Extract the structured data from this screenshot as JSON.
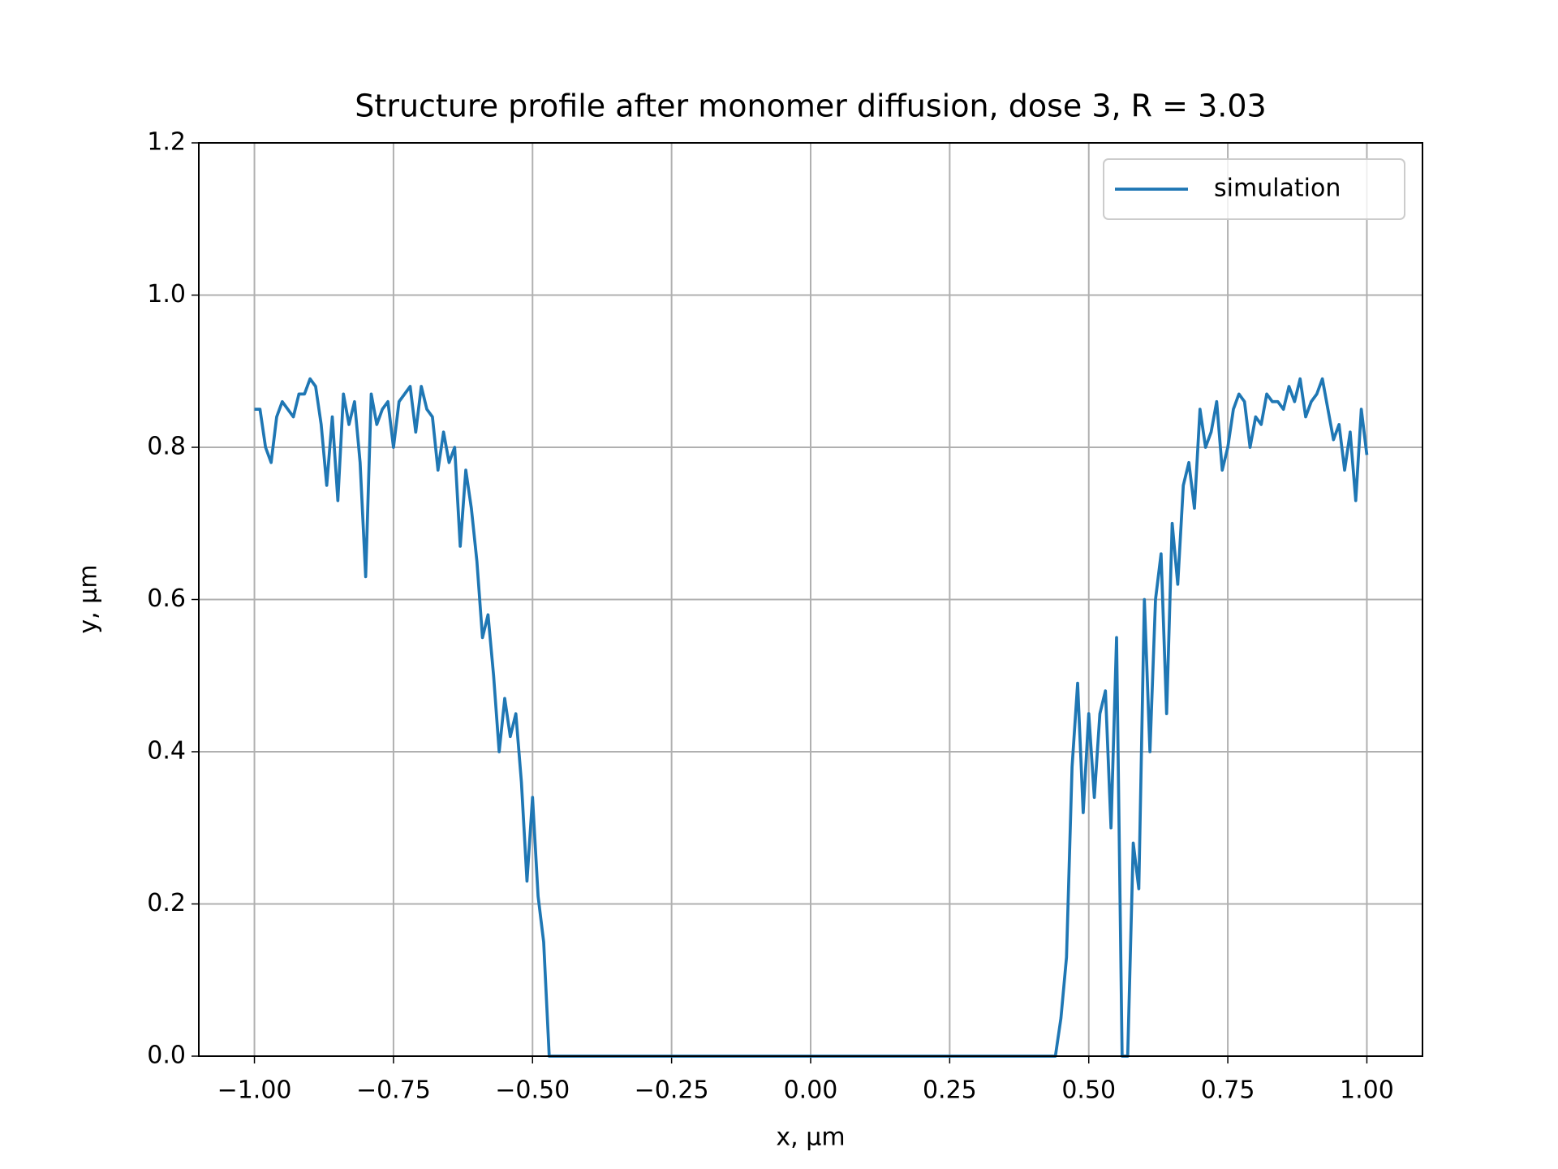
{
  "chart_data": {
    "type": "line",
    "title": "Structure profile after monomer diffusion, dose 3, R = 3.03",
    "x_label": "x, μm",
    "y_label": "y, μm",
    "x": [
      -1.0,
      -0.99,
      -0.98,
      -0.97,
      -0.96,
      -0.95,
      -0.94,
      -0.93,
      -0.92,
      -0.91,
      -0.9,
      -0.89,
      -0.88,
      -0.87,
      -0.86,
      -0.85,
      -0.84,
      -0.83,
      -0.82,
      -0.81,
      -0.8,
      -0.79,
      -0.78,
      -0.77,
      -0.76,
      -0.75,
      -0.74,
      -0.73,
      -0.72,
      -0.71,
      -0.7,
      -0.69,
      -0.68,
      -0.67,
      -0.66,
      -0.65,
      -0.64,
      -0.63,
      -0.62,
      -0.61,
      -0.6,
      -0.59,
      -0.58,
      -0.57,
      -0.56,
      -0.55,
      -0.54,
      -0.53,
      -0.52,
      -0.51,
      -0.5,
      -0.49,
      -0.48,
      -0.47,
      0.44,
      0.45,
      0.46,
      0.47,
      0.48,
      0.49,
      0.5,
      0.51,
      0.52,
      0.53,
      0.54,
      0.55,
      0.56,
      0.57,
      0.58,
      0.59,
      0.6,
      0.61,
      0.62,
      0.63,
      0.64,
      0.65,
      0.66,
      0.67,
      0.68,
      0.69,
      0.7,
      0.71,
      0.72,
      0.73,
      0.74,
      0.75,
      0.76,
      0.77,
      0.78,
      0.79,
      0.8,
      0.81,
      0.82,
      0.83,
      0.84,
      0.85,
      0.86,
      0.87,
      0.88,
      0.89,
      0.9,
      0.91,
      0.92,
      0.93,
      0.94,
      0.95,
      0.96,
      0.97,
      0.98,
      0.99,
      1.0
    ],
    "series": [
      {
        "name": "simulation",
        "color": "#1f77b4",
        "values": [
          0.85,
          0.85,
          0.8,
          0.78,
          0.84,
          0.86,
          0.85,
          0.84,
          0.87,
          0.87,
          0.89,
          0.88,
          0.83,
          0.75,
          0.84,
          0.73,
          0.87,
          0.83,
          0.86,
          0.78,
          0.63,
          0.87,
          0.83,
          0.85,
          0.86,
          0.8,
          0.86,
          0.87,
          0.88,
          0.82,
          0.88,
          0.85,
          0.84,
          0.77,
          0.82,
          0.78,
          0.8,
          0.67,
          0.77,
          0.72,
          0.65,
          0.55,
          0.58,
          0.5,
          0.4,
          0.47,
          0.42,
          0.45,
          0.36,
          0.23,
          0.34,
          0.21,
          0.15,
          0,
          0,
          0.05,
          0.13,
          0.38,
          0.49,
          0.32,
          0.45,
          0.34,
          0.45,
          0.48,
          0.3,
          0.55,
          0,
          0,
          0.28,
          0.22,
          0.6,
          0.4,
          0.6,
          0.66,
          0.45,
          0.7,
          0.62,
          0.75,
          0.78,
          0.72,
          0.85,
          0.8,
          0.82,
          0.86,
          0.77,
          0.8,
          0.85,
          0.87,
          0.86,
          0.8,
          0.84,
          0.83,
          0.87,
          0.86,
          0.86,
          0.85,
          0.88,
          0.86,
          0.89,
          0.84,
          0.86,
          0.87,
          0.89,
          0.85,
          0.81,
          0.83,
          0.77,
          0.82,
          0.73,
          0.85,
          0.79
        ]
      }
    ],
    "xlim": [
      -1.1,
      1.1
    ],
    "ylim": [
      0,
      1.2
    ],
    "xticks": [
      {
        "value": -1,
        "label": "−1.00"
      },
      {
        "value": -0.75,
        "label": "−0.75"
      },
      {
        "value": -0.5,
        "label": "−0.50"
      },
      {
        "value": -0.25,
        "label": "−0.25"
      },
      {
        "value": 0,
        "label": "0.00"
      },
      {
        "value": 0.25,
        "label": "0.25"
      },
      {
        "value": 0.5,
        "label": "0.50"
      },
      {
        "value": 0.75,
        "label": "0.75"
      },
      {
        "value": 1,
        "label": "1.00"
      }
    ],
    "yticks": [
      {
        "value": 0,
        "label": "0.0"
      },
      0.2,
      0.4,
      0.6,
      0.8,
      {
        "value": 1,
        "label": "1.0"
      },
      1.2
    ],
    "grid": true,
    "legend": "upper right"
  }
}
